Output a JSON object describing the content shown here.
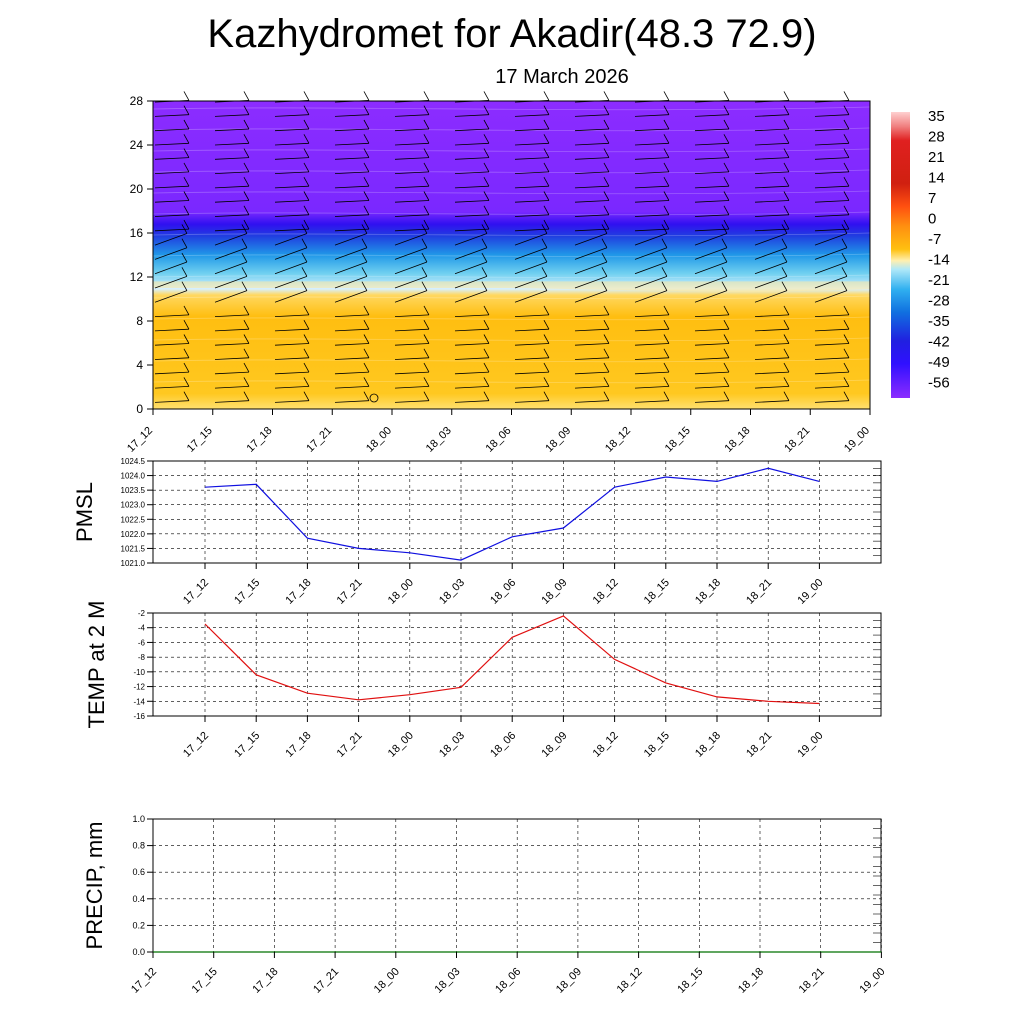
{
  "title": "Kazhydromet for Akadir(48.3 72.9)",
  "subtitle": "17 March 2026",
  "time_labels": [
    "17_12",
    "17_15",
    "17_18",
    "17_21",
    "18_00",
    "18_03",
    "18_06",
    "18_09",
    "18_12",
    "18_15",
    "18_18",
    "18_21",
    "19_00"
  ],
  "colors": {
    "pmsl_line": "#1010e0",
    "temp_line": "#e01010",
    "precip_line": "#007000",
    "grid": "#000000",
    "wind_barb": "#000000"
  },
  "chart_data": [
    {
      "type": "heatmap",
      "name": "vertical-profile",
      "title": "",
      "xlabel": "",
      "ylabel": "",
      "categories": [
        "17_12",
        "17_15",
        "17_18",
        "17_21",
        "18_00",
        "18_03",
        "18_06",
        "18_09",
        "18_12",
        "18_15",
        "18_18",
        "18_21",
        "19_00"
      ],
      "y_ticks": [
        0,
        4,
        8,
        12,
        16,
        20,
        24,
        28
      ],
      "ylim": [
        0,
        28
      ],
      "colorbar": {
        "labels": [
          "35",
          "28",
          "21",
          "14",
          "7",
          "0",
          "-7",
          "-14",
          "-21",
          "-28",
          "-35",
          "-42",
          "-49",
          "-56"
        ],
        "colors": [
          "#ffb0b0",
          "#e02020",
          "#d02010",
          "#ff4010",
          "#ff8010",
          "#ffb000",
          "#ffd020",
          "#fff0b0",
          "#30b0f0",
          "#1090e0",
          "#2050e0",
          "#2020e0",
          "#3010ff",
          "#8030ff"
        ]
      },
      "layers": [
        {
          "from": 0,
          "to": 11,
          "temp_c": -7,
          "description_color": "#ffc020"
        },
        {
          "from": 11,
          "to": 14,
          "temp_c": -24,
          "description_color": "#50c0f0"
        },
        {
          "from": 14,
          "to": 18,
          "temp_c": -45,
          "description_color": "#2030e0"
        },
        {
          "from": 18,
          "to": 28,
          "temp_c": -58,
          "description_color": "#8a2cff"
        }
      ]
    },
    {
      "type": "line",
      "name": "pmsl",
      "ylabel": "PMSL",
      "categories": [
        "17_12",
        "17_15",
        "17_18",
        "17_21",
        "18_00",
        "18_03",
        "18_06",
        "18_09",
        "18_12",
        "18_15",
        "18_18",
        "18_21",
        "19_00"
      ],
      "values": [
        1023.6,
        1023.7,
        1021.85,
        1021.5,
        1021.35,
        1021.1,
        1021.9,
        1022.2,
        1023.6,
        1023.95,
        1023.8,
        1024.25,
        1023.8
      ],
      "ylim": [
        1021.0,
        1024.5
      ],
      "y_ticks": [
        "1021.0",
        "1021.5",
        "1022.0",
        "1022.5",
        "1023.0",
        "1023.5",
        "1024.0",
        "1024.5"
      ]
    },
    {
      "type": "line",
      "name": "temp",
      "ylabel": "TEMP at 2 M",
      "categories": [
        "17_12",
        "17_15",
        "17_18",
        "17_21",
        "18_00",
        "18_03",
        "18_06",
        "18_09",
        "18_12",
        "18_15",
        "18_18",
        "18_21",
        "19_00"
      ],
      "values": [
        -3.5,
        -10.4,
        -12.9,
        -13.8,
        -13.1,
        -12.1,
        -5.3,
        -2.4,
        -8.3,
        -11.5,
        -13.4,
        -14.0,
        -14.3
      ],
      "ylim": [
        -16,
        -2
      ],
      "y_ticks": [
        "-2",
        "-4",
        "-6",
        "-8",
        "-10",
        "-12",
        "-14",
        "-16"
      ]
    },
    {
      "type": "line",
      "name": "precip",
      "ylabel": "PRECIP, mm",
      "categories": [
        "17_12",
        "17_15",
        "17_18",
        "17_21",
        "18_00",
        "18_03",
        "18_06",
        "18_09",
        "18_12",
        "18_15",
        "18_18",
        "18_21",
        "19_00"
      ],
      "values": [
        0,
        0,
        0,
        0,
        0,
        0,
        0,
        0,
        0,
        0,
        0,
        0,
        0
      ],
      "ylim": [
        0.0,
        1.0
      ],
      "y_ticks": [
        "0.0",
        "0.2",
        "0.4",
        "0.6",
        "0.8",
        "1.0"
      ]
    }
  ]
}
